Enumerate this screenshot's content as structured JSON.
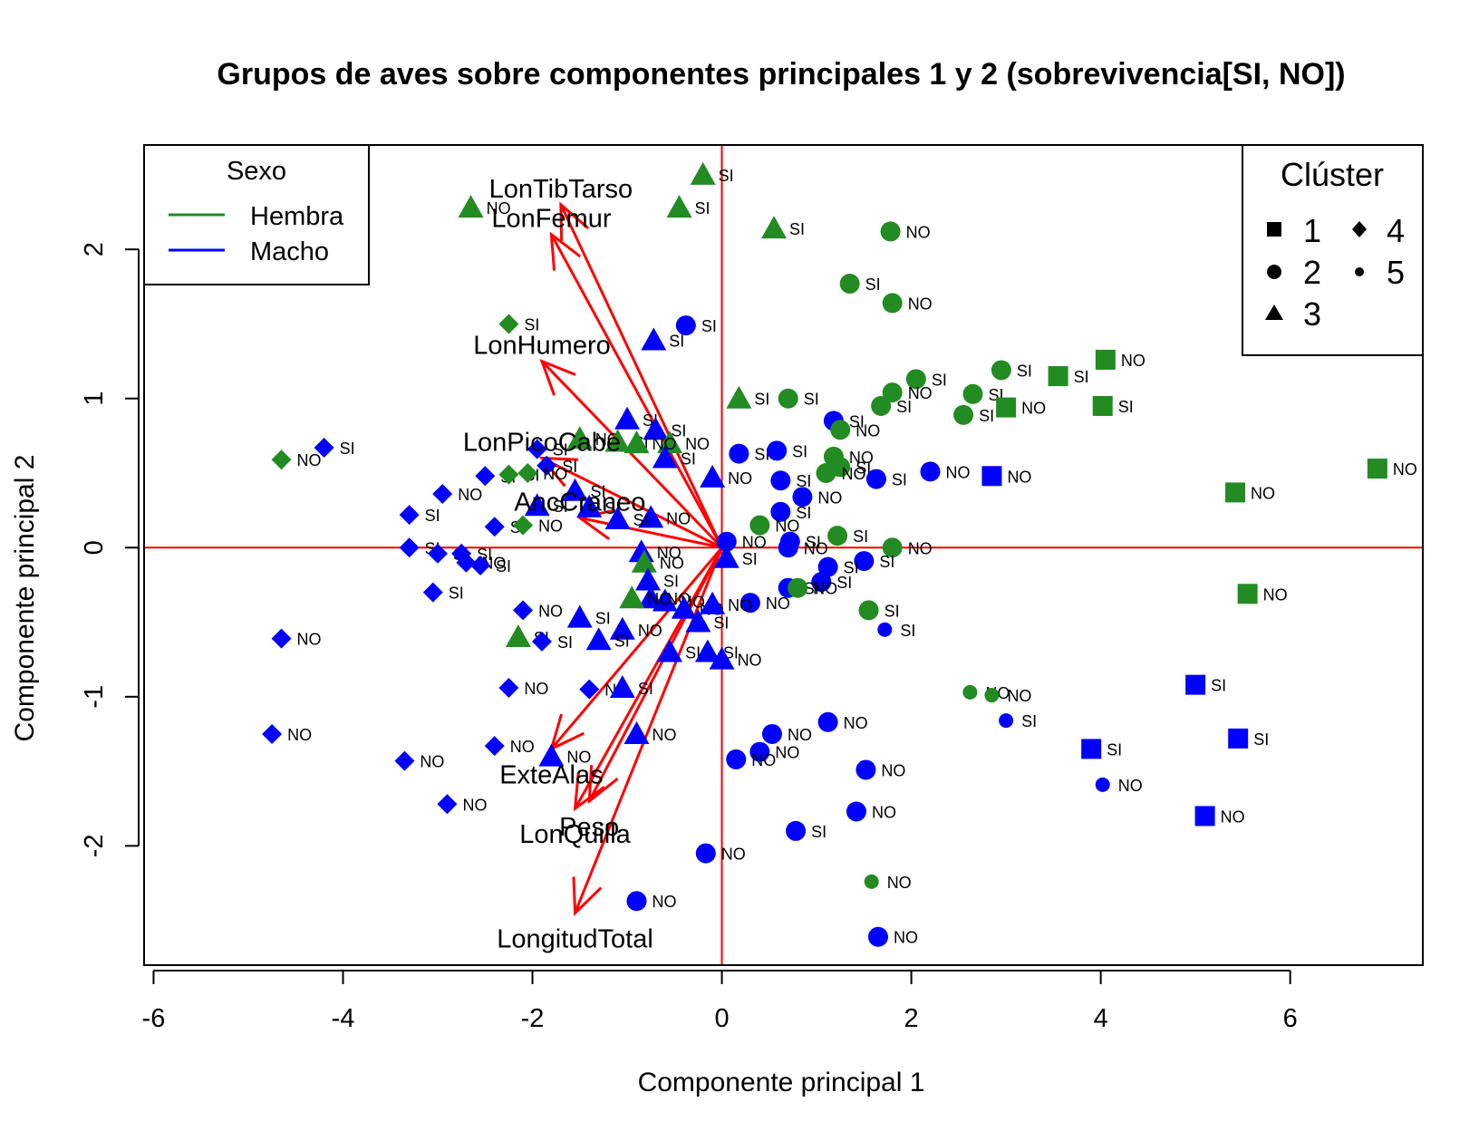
{
  "chart_data": {
    "type": "scatter",
    "title": "Grupos de aves sobre componentes principales 1 y 2 (sobrevivencia[SI, NO])",
    "xlabel": "Componente principal 1",
    "ylabel": "Componente principal 2",
    "xlim": [
      -6.1,
      7.4
    ],
    "ylim": [
      -2.8,
      2.7
    ],
    "xticks": [
      -6,
      -4,
      -2,
      0,
      2,
      4,
      6
    ],
    "yticks": [
      -2,
      -1,
      0,
      1,
      2
    ],
    "reference_lines": {
      "x": 0,
      "y": 0,
      "color": "#ff0000"
    },
    "colors": {
      "Hembra": "#228b22",
      "Macho": "#0000ff",
      "arrows": "#ff0000"
    },
    "legend_sexo": {
      "title": "Sexo",
      "items": [
        "Hembra",
        "Macho"
      ],
      "position": "top-left"
    },
    "legend_cluster": {
      "title": "Clúster",
      "items": [
        "1",
        "2",
        "3",
        "4",
        "5"
      ],
      "shapes": [
        "square",
        "circle",
        "triangle",
        "diamond",
        "small-circle"
      ],
      "position": "top-right"
    },
    "variables": [
      {
        "name": "LonTibTarso",
        "x": -1.7,
        "y": 2.3
      },
      {
        "name": "LonFemur",
        "x": -1.8,
        "y": 2.1
      },
      {
        "name": "LonHumero",
        "x": -1.9,
        "y": 1.25
      },
      {
        "name": "LonPicoCabe",
        "x": -1.9,
        "y": 0.6
      },
      {
        "name": "AncCraneo",
        "x": -1.5,
        "y": 0.2
      },
      {
        "name": "ExteAlas",
        "x": -1.8,
        "y": -1.35
      },
      {
        "name": "LonQuilla",
        "x": -1.55,
        "y": -1.75
      },
      {
        "name": "Peso",
        "x": -1.4,
        "y": -1.7
      },
      {
        "name": "LongitudTotal",
        "x": -1.55,
        "y": -2.45
      }
    ],
    "points": [
      {
        "x": -0.2,
        "y": 2.5,
        "sex": "Hembra",
        "cluster": 3,
        "label": "SI"
      },
      {
        "x": -2.65,
        "y": 2.28,
        "sex": "Hembra",
        "cluster": 3,
        "label": "NO"
      },
      {
        "x": -0.45,
        "y": 2.28,
        "sex": "Hembra",
        "cluster": 3,
        "label": "SI"
      },
      {
        "x": 0.55,
        "y": 2.14,
        "sex": "Hembra",
        "cluster": 3,
        "label": "SI"
      },
      {
        "x": 1.78,
        "y": 2.12,
        "sex": "Hembra",
        "cluster": 2,
        "label": "NO"
      },
      {
        "x": 1.35,
        "y": 1.77,
        "sex": "Hembra",
        "cluster": 2,
        "label": "SI"
      },
      {
        "x": 1.8,
        "y": 1.64,
        "sex": "Hembra",
        "cluster": 2,
        "label": "NO"
      },
      {
        "x": -2.25,
        "y": 1.5,
        "sex": "Hembra",
        "cluster": 4,
        "label": "SI"
      },
      {
        "x": -0.38,
        "y": 1.49,
        "sex": "Macho",
        "cluster": 2,
        "label": "SI"
      },
      {
        "x": -0.72,
        "y": 1.39,
        "sex": "Macho",
        "cluster": 3,
        "label": "SI"
      },
      {
        "x": 4.05,
        "y": 1.26,
        "sex": "Hembra",
        "cluster": 1,
        "label": "NO"
      },
      {
        "x": 2.95,
        "y": 1.19,
        "sex": "Hembra",
        "cluster": 2,
        "label": "SI"
      },
      {
        "x": 3.55,
        "y": 1.15,
        "sex": "Hembra",
        "cluster": 1,
        "label": "SI"
      },
      {
        "x": 2.05,
        "y": 1.13,
        "sex": "Hembra",
        "cluster": 2,
        "label": "SI"
      },
      {
        "x": 1.8,
        "y": 1.04,
        "sex": "Hembra",
        "cluster": 2,
        "label": "NO"
      },
      {
        "x": 2.65,
        "y": 1.03,
        "sex": "Hembra",
        "cluster": 2,
        "label": "SI"
      },
      {
        "x": 0.18,
        "y": 1.0,
        "sex": "Hembra",
        "cluster": 3,
        "label": "SI"
      },
      {
        "x": 0.7,
        "y": 1.0,
        "sex": "Hembra",
        "cluster": 2,
        "label": "SI"
      },
      {
        "x": 1.68,
        "y": 0.95,
        "sex": "Hembra",
        "cluster": 2,
        "label": "SI"
      },
      {
        "x": 3.0,
        "y": 0.94,
        "sex": "Hembra",
        "cluster": 1,
        "label": "NO"
      },
      {
        "x": 4.02,
        "y": 0.95,
        "sex": "Hembra",
        "cluster": 1,
        "label": "SI"
      },
      {
        "x": 2.55,
        "y": 0.89,
        "sex": "Hembra",
        "cluster": 2,
        "label": "SI"
      },
      {
        "x": 1.18,
        "y": 0.85,
        "sex": "Macho",
        "cluster": 2,
        "label": "SI"
      },
      {
        "x": 1.25,
        "y": 0.79,
        "sex": "Hembra",
        "cluster": 2,
        "label": "NO"
      },
      {
        "x": -1.0,
        "y": 0.86,
        "sex": "Macho",
        "cluster": 3,
        "label": "SI"
      },
      {
        "x": -0.7,
        "y": 0.79,
        "sex": "Macho",
        "cluster": 3,
        "label": "SI"
      },
      {
        "x": -1.5,
        "y": 0.73,
        "sex": "Hembra",
        "cluster": 3,
        "label": "NO"
      },
      {
        "x": -1.1,
        "y": 0.71,
        "sex": "Hembra",
        "cluster": 3,
        "label": "SI"
      },
      {
        "x": -0.55,
        "y": 0.7,
        "sex": "Hembra",
        "cluster": 3,
        "label": "NO"
      },
      {
        "x": -0.9,
        "y": 0.7,
        "sex": "Hembra",
        "cluster": 3,
        "label": "NO"
      },
      {
        "x": -4.2,
        "y": 0.67,
        "sex": "Macho",
        "cluster": 4,
        "label": "SI"
      },
      {
        "x": -1.95,
        "y": 0.66,
        "sex": "Macho",
        "cluster": 4,
        "label": "SI"
      },
      {
        "x": 0.18,
        "y": 0.63,
        "sex": "Macho",
        "cluster": 2,
        "label": "SI"
      },
      {
        "x": 0.58,
        "y": 0.65,
        "sex": "Macho",
        "cluster": 2,
        "label": "SI"
      },
      {
        "x": 1.18,
        "y": 0.61,
        "sex": "Hembra",
        "cluster": 2,
        "label": "NO"
      },
      {
        "x": -0.6,
        "y": 0.6,
        "sex": "Macho",
        "cluster": 3,
        "label": "SI"
      },
      {
        "x": -4.65,
        "y": 0.59,
        "sex": "Hembra",
        "cluster": 4,
        "label": "NO"
      },
      {
        "x": -1.85,
        "y": 0.55,
        "sex": "Macho",
        "cluster": 4,
        "label": "SI"
      },
      {
        "x": 1.25,
        "y": 0.54,
        "sex": "Hembra",
        "cluster": 2,
        "label": "SI"
      },
      {
        "x": 1.1,
        "y": 0.5,
        "sex": "Hembra",
        "cluster": 2,
        "label": "NO"
      },
      {
        "x": 2.2,
        "y": 0.51,
        "sex": "Macho",
        "cluster": 2,
        "label": "NO"
      },
      {
        "x": 6.92,
        "y": 0.53,
        "sex": "Hembra",
        "cluster": 1,
        "label": "NO"
      },
      {
        "x": -2.5,
        "y": 0.48,
        "sex": "Macho",
        "cluster": 4,
        "label": "SI"
      },
      {
        "x": -2.25,
        "y": 0.49,
        "sex": "Hembra",
        "cluster": 4,
        "label": "SI"
      },
      {
        "x": -2.05,
        "y": 0.5,
        "sex": "Hembra",
        "cluster": 4,
        "label": "NO"
      },
      {
        "x": -0.1,
        "y": 0.47,
        "sex": "Macho",
        "cluster": 3,
        "label": "NO"
      },
      {
        "x": 0.62,
        "y": 0.45,
        "sex": "Macho",
        "cluster": 2,
        "label": "SI"
      },
      {
        "x": 1.63,
        "y": 0.46,
        "sex": "Macho",
        "cluster": 2,
        "label": "SI"
      },
      {
        "x": 2.85,
        "y": 0.48,
        "sex": "Macho",
        "cluster": 1,
        "label": "NO"
      },
      {
        "x": -1.55,
        "y": 0.38,
        "sex": "Macho",
        "cluster": 3,
        "label": "SI"
      },
      {
        "x": -2.95,
        "y": 0.36,
        "sex": "Macho",
        "cluster": 4,
        "label": "NO"
      },
      {
        "x": 5.42,
        "y": 0.37,
        "sex": "Hembra",
        "cluster": 1,
        "label": "NO"
      },
      {
        "x": 0.85,
        "y": 0.34,
        "sex": "Macho",
        "cluster": 2,
        "label": "NO"
      },
      {
        "x": -1.95,
        "y": 0.28,
        "sex": "Macho",
        "cluster": 3,
        "label": "SI"
      },
      {
        "x": -1.4,
        "y": 0.27,
        "sex": "Macho",
        "cluster": 3,
        "label": "SI"
      },
      {
        "x": 0.62,
        "y": 0.24,
        "sex": "Macho",
        "cluster": 2,
        "label": "SI"
      },
      {
        "x": -3.3,
        "y": 0.22,
        "sex": "Macho",
        "cluster": 4,
        "label": "SI"
      },
      {
        "x": -0.75,
        "y": 0.2,
        "sex": "Macho",
        "cluster": 3,
        "label": "NO"
      },
      {
        "x": -1.1,
        "y": 0.19,
        "sex": "Macho",
        "cluster": 3,
        "label": "SI"
      },
      {
        "x": -2.4,
        "y": 0.14,
        "sex": "Macho",
        "cluster": 4,
        "label": "SI"
      },
      {
        "x": -2.1,
        "y": 0.15,
        "sex": "Hembra",
        "cluster": 4,
        "label": "NO"
      },
      {
        "x": 0.4,
        "y": 0.15,
        "sex": "Hembra",
        "cluster": 2,
        "label": "NO"
      },
      {
        "x": 1.22,
        "y": 0.08,
        "sex": "Hembra",
        "cluster": 2,
        "label": "SI"
      },
      {
        "x": 0.05,
        "y": 0.04,
        "sex": "Macho",
        "cluster": 2,
        "label": "NO"
      },
      {
        "x": 0.72,
        "y": 0.04,
        "sex": "Macho",
        "cluster": 2,
        "label": "SI"
      },
      {
        "x": 1.8,
        "y": 0.0,
        "sex": "Hembra",
        "cluster": 2,
        "label": "NO"
      },
      {
        "x": 0.7,
        "y": 0.0,
        "sex": "Macho",
        "cluster": 2,
        "label": "NO"
      },
      {
        "x": -3.3,
        "y": 0.0,
        "sex": "Macho",
        "cluster": 4,
        "label": "SI"
      },
      {
        "x": -3.0,
        "y": -0.04,
        "sex": "Macho",
        "cluster": 4,
        "label": "SI"
      },
      {
        "x": -2.75,
        "y": -0.04,
        "sex": "Macho",
        "cluster": 4,
        "label": "SI"
      },
      {
        "x": -0.85,
        "y": -0.03,
        "sex": "Macho",
        "cluster": 3,
        "label": "NO"
      },
      {
        "x": -0.82,
        "y": -0.1,
        "sex": "Hembra",
        "cluster": 3,
        "label": "NO"
      },
      {
        "x": 0.05,
        "y": -0.07,
        "sex": "Macho",
        "cluster": 3,
        "label": "SI"
      },
      {
        "x": -2.7,
        "y": -0.1,
        "sex": "Macho",
        "cluster": 4,
        "label": "NO"
      },
      {
        "x": -2.55,
        "y": -0.12,
        "sex": "Macho",
        "cluster": 4,
        "label": "SI"
      },
      {
        "x": 1.5,
        "y": -0.09,
        "sex": "Macho",
        "cluster": 2,
        "label": "SI"
      },
      {
        "x": 1.12,
        "y": -0.13,
        "sex": "Macho",
        "cluster": 2,
        "label": "SI"
      },
      {
        "x": -0.78,
        "y": -0.22,
        "sex": "Macho",
        "cluster": 3,
        "label": "SI"
      },
      {
        "x": 1.05,
        "y": -0.23,
        "sex": "Macho",
        "cluster": 2,
        "label": "SI"
      },
      {
        "x": 0.7,
        "y": -0.27,
        "sex": "Macho",
        "cluster": 2,
        "label": "SI"
      },
      {
        "x": 0.8,
        "y": -0.27,
        "sex": "Hembra",
        "cluster": 2,
        "label": "NO"
      },
      {
        "x": -3.05,
        "y": -0.3,
        "sex": "Macho",
        "cluster": 4,
        "label": "SI"
      },
      {
        "x": -0.75,
        "y": -0.34,
        "sex": "Macho",
        "cluster": 3,
        "label": "NO"
      },
      {
        "x": -0.6,
        "y": -0.36,
        "sex": "Macho",
        "cluster": 3,
        "label": "NO"
      },
      {
        "x": 5.55,
        "y": -0.31,
        "sex": "Hembra",
        "cluster": 1,
        "label": "NO"
      },
      {
        "x": -0.95,
        "y": -0.34,
        "sex": "Hembra",
        "cluster": 3,
        "label": "NO"
      },
      {
        "x": 0.3,
        "y": -0.37,
        "sex": "Macho",
        "cluster": 2,
        "label": "NO"
      },
      {
        "x": -0.4,
        "y": -0.41,
        "sex": "Macho",
        "cluster": 3,
        "label": "NO"
      },
      {
        "x": -0.1,
        "y": -0.38,
        "sex": "Macho",
        "cluster": 3,
        "label": "NO"
      },
      {
        "x": -2.1,
        "y": -0.42,
        "sex": "Macho",
        "cluster": 4,
        "label": "NO"
      },
      {
        "x": 1.55,
        "y": -0.42,
        "sex": "Hembra",
        "cluster": 2,
        "label": "SI"
      },
      {
        "x": -1.5,
        "y": -0.47,
        "sex": "Macho",
        "cluster": 3,
        "label": "SI"
      },
      {
        "x": -0.25,
        "y": -0.5,
        "sex": "Macho",
        "cluster": 3,
        "label": "SI"
      },
      {
        "x": -1.05,
        "y": -0.55,
        "sex": "Macho",
        "cluster": 3,
        "label": "NO"
      },
      {
        "x": 1.72,
        "y": -0.55,
        "sex": "Macho",
        "cluster": 5,
        "label": "SI"
      },
      {
        "x": -2.15,
        "y": -0.6,
        "sex": "Hembra",
        "cluster": 3,
        "label": "SI"
      },
      {
        "x": -1.9,
        "y": -0.63,
        "sex": "Macho",
        "cluster": 4,
        "label": "SI"
      },
      {
        "x": -1.3,
        "y": -0.62,
        "sex": "Macho",
        "cluster": 3,
        "label": "SI"
      },
      {
        "x": -4.65,
        "y": -0.61,
        "sex": "Macho",
        "cluster": 4,
        "label": "NO"
      },
      {
        "x": -0.55,
        "y": -0.7,
        "sex": "Macho",
        "cluster": 3,
        "label": "SI"
      },
      {
        "x": -0.15,
        "y": -0.7,
        "sex": "Macho",
        "cluster": 3,
        "label": "SI"
      },
      {
        "x": 0.0,
        "y": -0.75,
        "sex": "Macho",
        "cluster": 3,
        "label": "NO"
      },
      {
        "x": -2.25,
        "y": -0.94,
        "sex": "Macho",
        "cluster": 4,
        "label": "NO"
      },
      {
        "x": -1.4,
        "y": -0.95,
        "sex": "Macho",
        "cluster": 4,
        "label": "NO"
      },
      {
        "x": -1.05,
        "y": -0.94,
        "sex": "Macho",
        "cluster": 3,
        "label": "SI"
      },
      {
        "x": 2.62,
        "y": -0.97,
        "sex": "Hembra",
        "cluster": 5,
        "label": "NO"
      },
      {
        "x": 2.85,
        "y": -0.99,
        "sex": "Hembra",
        "cluster": 5,
        "label": "NO"
      },
      {
        "x": 5.0,
        "y": -0.92,
        "sex": "Macho",
        "cluster": 1,
        "label": "SI"
      },
      {
        "x": 3.0,
        "y": -1.16,
        "sex": "Macho",
        "cluster": 5,
        "label": "SI"
      },
      {
        "x": 1.12,
        "y": -1.17,
        "sex": "Macho",
        "cluster": 2,
        "label": "NO"
      },
      {
        "x": 0.53,
        "y": -1.25,
        "sex": "Macho",
        "cluster": 2,
        "label": "NO"
      },
      {
        "x": -0.9,
        "y": -1.25,
        "sex": "Macho",
        "cluster": 3,
        "label": "NO"
      },
      {
        "x": -4.75,
        "y": -1.25,
        "sex": "Macho",
        "cluster": 4,
        "label": "NO"
      },
      {
        "x": 5.45,
        "y": -1.28,
        "sex": "Macho",
        "cluster": 1,
        "label": "SI"
      },
      {
        "x": -2.4,
        "y": -1.33,
        "sex": "Macho",
        "cluster": 4,
        "label": "NO"
      },
      {
        "x": 3.9,
        "y": -1.35,
        "sex": "Macho",
        "cluster": 1,
        "label": "SI"
      },
      {
        "x": 0.4,
        "y": -1.37,
        "sex": "Macho",
        "cluster": 2,
        "label": "NO"
      },
      {
        "x": -1.8,
        "y": -1.4,
        "sex": "Macho",
        "cluster": 3,
        "label": "NO"
      },
      {
        "x": 0.15,
        "y": -1.42,
        "sex": "Macho",
        "cluster": 2,
        "label": "NO"
      },
      {
        "x": -3.35,
        "y": -1.43,
        "sex": "Macho",
        "cluster": 4,
        "label": "NO"
      },
      {
        "x": 1.52,
        "y": -1.49,
        "sex": "Macho",
        "cluster": 2,
        "label": "NO"
      },
      {
        "x": 4.02,
        "y": -1.59,
        "sex": "Macho",
        "cluster": 5,
        "label": "NO"
      },
      {
        "x": -2.9,
        "y": -1.72,
        "sex": "Macho",
        "cluster": 4,
        "label": "NO"
      },
      {
        "x": 1.42,
        "y": -1.77,
        "sex": "Macho",
        "cluster": 2,
        "label": "NO"
      },
      {
        "x": 5.1,
        "y": -1.8,
        "sex": "Macho",
        "cluster": 1,
        "label": "NO"
      },
      {
        "x": 0.78,
        "y": -1.9,
        "sex": "Macho",
        "cluster": 2,
        "label": "SI"
      },
      {
        "x": -0.17,
        "y": -2.05,
        "sex": "Macho",
        "cluster": 2,
        "label": "NO"
      },
      {
        "x": 1.58,
        "y": -2.24,
        "sex": "Hembra",
        "cluster": 5,
        "label": "NO"
      },
      {
        "x": -0.9,
        "y": -2.37,
        "sex": "Macho",
        "cluster": 2,
        "label": "NO"
      },
      {
        "x": 1.65,
        "y": -2.61,
        "sex": "Macho",
        "cluster": 2,
        "label": "NO"
      }
    ]
  }
}
